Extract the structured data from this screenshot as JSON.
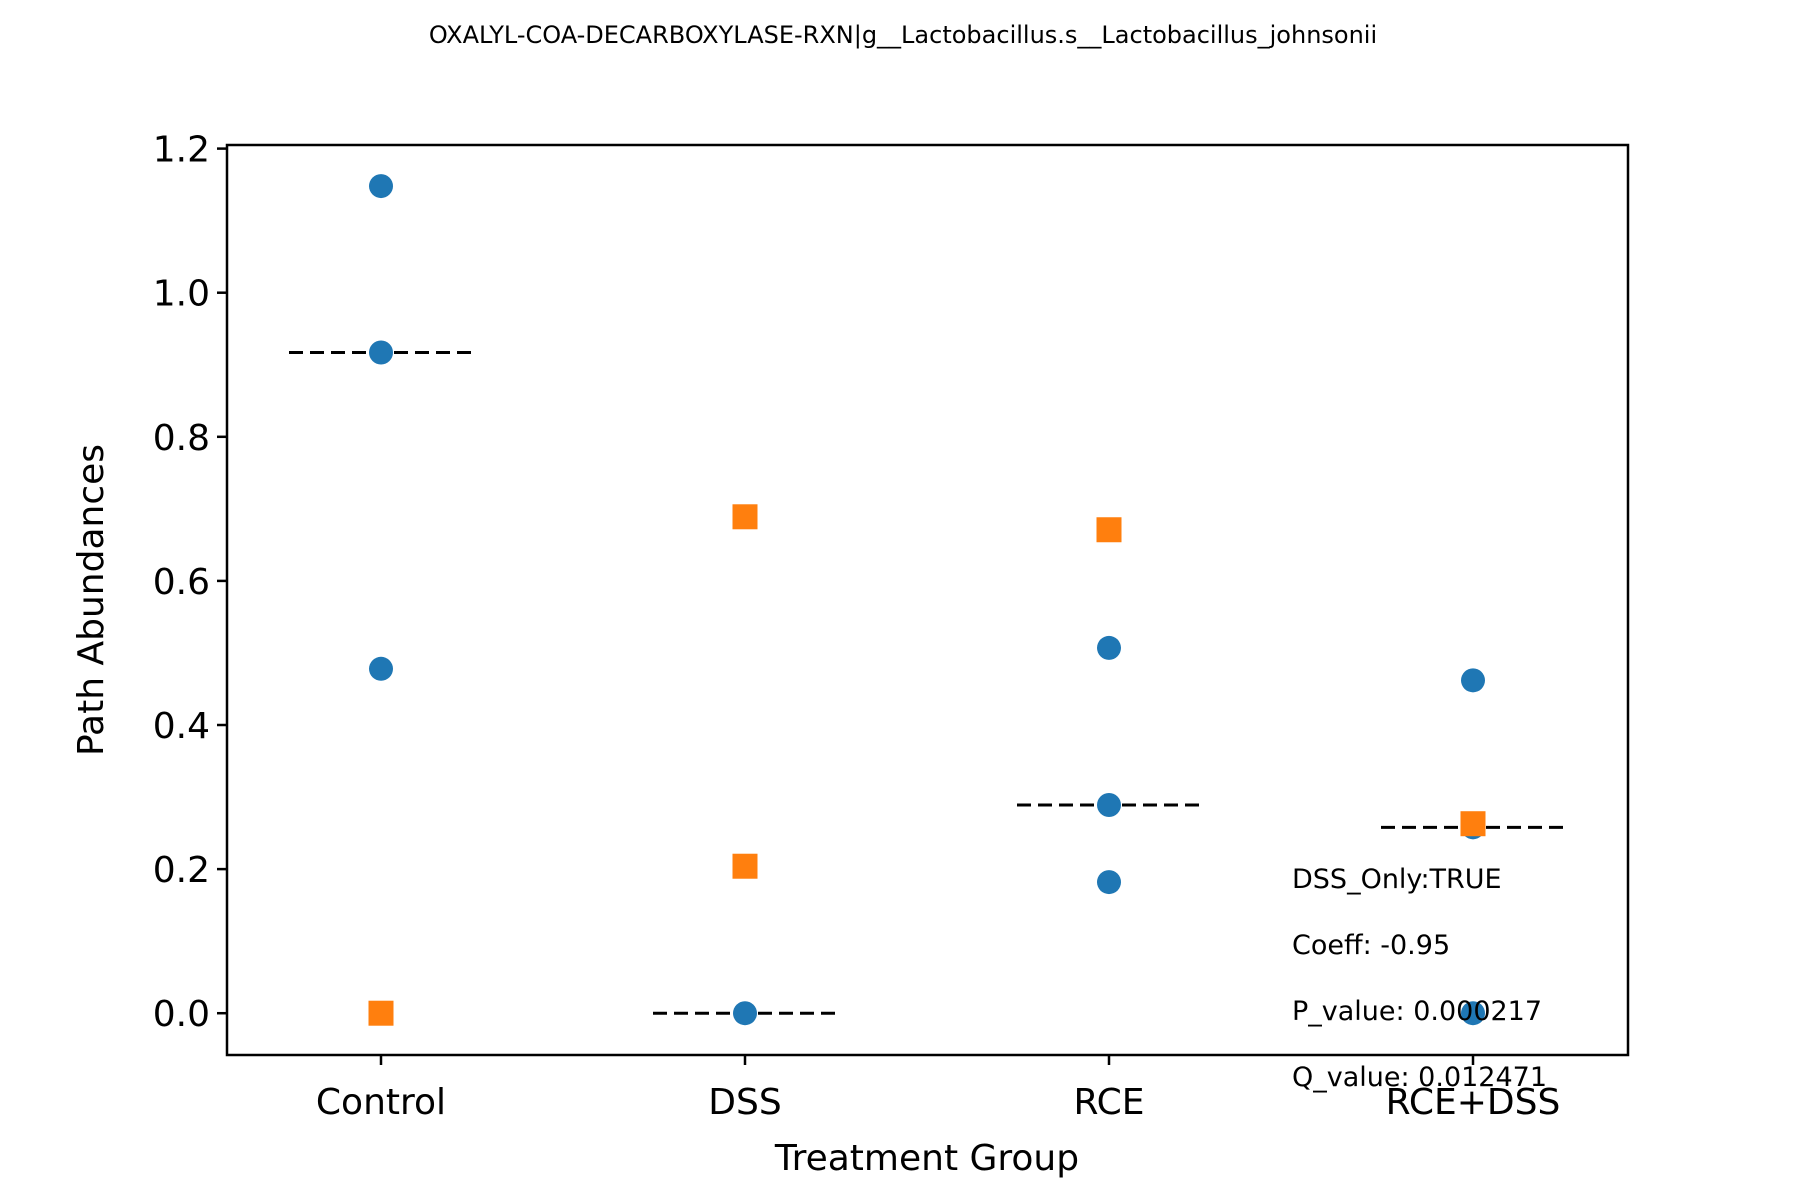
{
  "chart_data": {
    "type": "scatter",
    "title": "OXALYL-COA-DECARBOXYLASE-RXN|g__Lactobacillus.s__Lactobacillus_johnsonii",
    "xlabel": "Treatment Group",
    "ylabel": "Path Abundances",
    "categories": [
      "Control",
      "DSS",
      "RCE",
      "RCE+DSS"
    ],
    "ylim": [
      -0.058,
      1.205
    ],
    "yticks": [
      0.0,
      0.2,
      0.4,
      0.6,
      0.8,
      1.0,
      1.2
    ],
    "ytick_labels": [
      "0.0",
      "0.2",
      "0.4",
      "0.6",
      "0.8",
      "1.0",
      "1.2"
    ],
    "grid": false,
    "series": [
      {
        "marker": "circle",
        "color": "#1f77b4",
        "points": [
          {
            "category": "Control",
            "y": 1.148
          },
          {
            "category": "Control",
            "y": 0.917
          },
          {
            "category": "Control",
            "y": 0.478
          },
          {
            "category": "DSS",
            "y": 0.0
          },
          {
            "category": "RCE",
            "y": 0.507
          },
          {
            "category": "RCE",
            "y": 0.289
          },
          {
            "category": "RCE",
            "y": 0.182
          },
          {
            "category": "RCE+DSS",
            "y": 0.462
          },
          {
            "category": "RCE+DSS",
            "y": 0.258
          },
          {
            "category": "RCE+DSS",
            "y": 0.0
          }
        ]
      },
      {
        "marker": "square",
        "color": "#ff7f0e",
        "points": [
          {
            "category": "Control",
            "y": 0.0
          },
          {
            "category": "DSS",
            "y": 0.689
          },
          {
            "category": "DSS",
            "y": 0.204
          },
          {
            "category": "RCE",
            "y": 0.671
          },
          {
            "category": "RCE+DSS",
            "y": 0.263
          }
        ]
      }
    ],
    "median_lines": [
      {
        "category": "Control",
        "y": 0.917
      },
      {
        "category": "DSS",
        "y": 0.0
      },
      {
        "category": "RCE",
        "y": 0.289
      },
      {
        "category": "RCE+DSS",
        "y": 0.258
      }
    ],
    "median_line_color": "#000000",
    "annotations": [
      "DSS_Only:TRUE",
      "Coeff: -0.95",
      "P_value: 0.000217",
      "Q_value: 0.012471"
    ]
  }
}
